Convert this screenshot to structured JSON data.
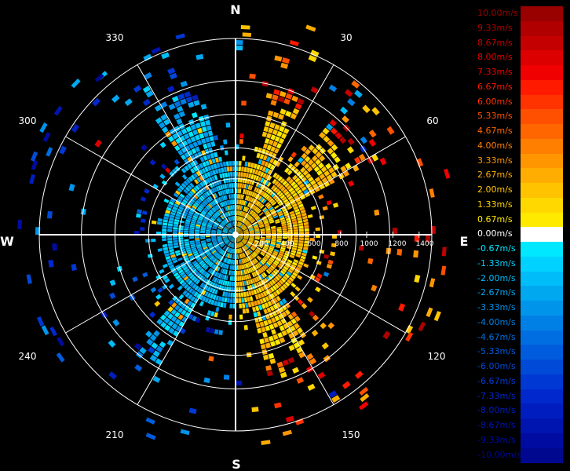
{
  "compass": {
    "north": "N",
    "south": "S",
    "east": "E",
    "west": "W"
  },
  "azimuth_labels": [
    "30",
    "60",
    "120",
    "150",
    "210",
    "240",
    "300",
    "330"
  ],
  "range_labels": [
    "200",
    "400",
    "600",
    "800",
    "1000",
    "1200",
    "1400"
  ],
  "legend": [
    {
      "label": "10.00m/s",
      "color": "#990000"
    },
    {
      "label": "9.33m/s",
      "color": "#b00000"
    },
    {
      "label": "8.67m/s",
      "color": "#c40000"
    },
    {
      "label": "8.00m/s",
      "color": "#dd0000"
    },
    {
      "label": "7.33m/s",
      "color": "#f00000"
    },
    {
      "label": "6.67m/s",
      "color": "#ff1a00"
    },
    {
      "label": "6.00m/s",
      "color": "#ff3300"
    },
    {
      "label": "5.33m/s",
      "color": "#ff4f00"
    },
    {
      "label": "4.67m/s",
      "color": "#ff6600"
    },
    {
      "label": "4.00m/s",
      "color": "#ff7f00"
    },
    {
      "label": "3.33m/s",
      "color": "#ff9600"
    },
    {
      "label": "2.67m/s",
      "color": "#ffad00"
    },
    {
      "label": "2.00m/s",
      "color": "#ffc300"
    },
    {
      "label": "1.33m/s",
      "color": "#ffd800"
    },
    {
      "label": "0.67m/s",
      "color": "#ffea00"
    },
    {
      "label": "0.00m/s",
      "color": "#ffffff"
    },
    {
      "label": "-0.67m/s",
      "color": "#00e8ff"
    },
    {
      "label": "-1.33m/s",
      "color": "#00d2ff"
    },
    {
      "label": "-2.00m/s",
      "color": "#00bcf8"
    },
    {
      "label": "-2.67m/s",
      "color": "#00a8f0"
    },
    {
      "label": "-3.33m/s",
      "color": "#0094ea"
    },
    {
      "label": "-4.00m/s",
      "color": "#0080e4"
    },
    {
      "label": "-4.67m/s",
      "color": "#006ee0"
    },
    {
      "label": "-5.33m/s",
      "color": "#005cdd"
    },
    {
      "label": "-6.00m/s",
      "color": "#004ad8"
    },
    {
      "label": "-6.67m/s",
      "color": "#0038d4"
    },
    {
      "label": "-7.33m/s",
      "color": "#0028cc"
    },
    {
      "label": "-8.00m/s",
      "color": "#001ec0"
    },
    {
      "label": "-8.67m/s",
      "color": "#0014b0"
    },
    {
      "label": "-9.33m/s",
      "color": "#000ca0"
    },
    {
      "label": "-10.00m/s",
      "color": "#000890"
    }
  ],
  "chart_data": {
    "type": "polar-heatmap",
    "title": "",
    "radial_axis": {
      "range": [
        0,
        1500
      ],
      "ticks": [
        200,
        400,
        600,
        800,
        1000,
        1200,
        1400
      ]
    },
    "angular_axis": {
      "ticks_deg": [
        0,
        30,
        60,
        90,
        120,
        150,
        180,
        210,
        240,
        270,
        300,
        330
      ],
      "grid": true
    },
    "color_scale": {
      "min": -10.0,
      "max": 10.0,
      "unit": "m/s"
    },
    "dominant_sectors": [
      {
        "azimuth_deg": [
          0,
          180
        ],
        "sign": "positive",
        "typical_value": 1.5
      },
      {
        "azimuth_deg": [
          180,
          360
        ],
        "sign": "negative",
        "typical_value": -1.5
      }
    ]
  }
}
